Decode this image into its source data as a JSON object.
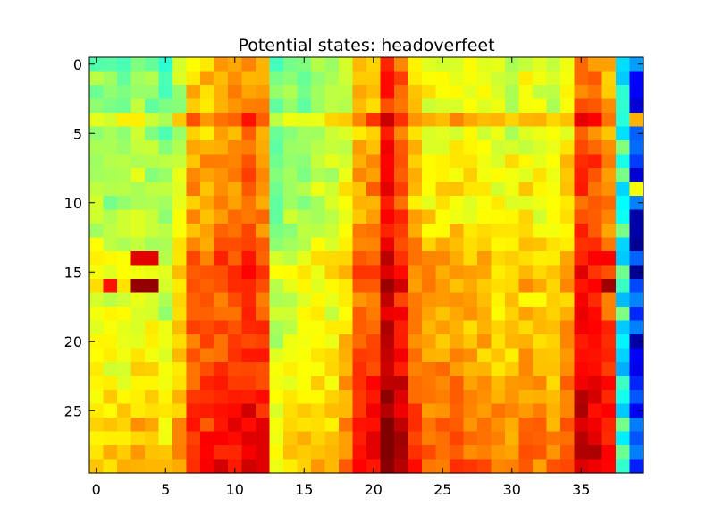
{
  "chart_data": {
    "type": "heatmap",
    "title": "Potential states: headoverfeet",
    "xlabel": "",
    "ylabel": "",
    "n_cols": 40,
    "n_rows": 30,
    "xlim": [
      -0.5,
      39.5
    ],
    "ylim": [
      29.5,
      -0.5
    ],
    "x_ticks": [
      0,
      5,
      10,
      15,
      20,
      25,
      30,
      35
    ],
    "y_ticks": [
      0,
      5,
      10,
      15,
      20,
      25
    ],
    "colormap": "jet",
    "value_range": [
      0,
      1
    ],
    "grid": false,
    "legend": "none",
    "column_profile": [
      0.56,
      0.55,
      0.55,
      0.58,
      0.56,
      0.52,
      0.6,
      0.72,
      0.72,
      0.75,
      0.75,
      0.78,
      0.76,
      0.52,
      0.55,
      0.55,
      0.57,
      0.57,
      0.62,
      0.72,
      0.75,
      0.88,
      0.82,
      0.7,
      0.66,
      0.66,
      0.66,
      0.65,
      0.64,
      0.62,
      0.62,
      0.64,
      0.63,
      0.62,
      0.66,
      0.82,
      0.8,
      0.75,
      0.4,
      0.15
    ],
    "row_profile": [
      -0.06,
      -0.04,
      -0.04,
      -0.05,
      0.05,
      -0.04,
      -0.03,
      0.0,
      -0.01,
      0.0,
      -0.02,
      -0.01,
      0.0,
      0.02,
      0.05,
      0.06,
      0.06,
      0.03,
      0.04,
      0.05,
      0.05,
      0.06,
      0.07,
      0.08,
      0.09,
      0.1,
      0.11,
      0.12,
      0.12,
      0.13
    ],
    "special_cells": [
      {
        "row": 14,
        "col": 3,
        "value": 0.9
      },
      {
        "row": 14,
        "col": 4,
        "value": 0.9
      },
      {
        "row": 16,
        "col": 3,
        "value": 0.98
      },
      {
        "row": 16,
        "col": 4,
        "value": 0.98
      },
      {
        "row": 16,
        "col": 1,
        "value": 0.86
      },
      {
        "row": 14,
        "col": 37,
        "value": 0.88
      },
      {
        "row": 16,
        "col": 37,
        "value": 0.97
      },
      {
        "row": 0,
        "col": 39,
        "value": 0.28
      },
      {
        "row": 1,
        "col": 39,
        "value": 0.12
      },
      {
        "row": 2,
        "col": 39,
        "value": 0.12
      },
      {
        "row": 4,
        "col": 39,
        "value": 0.7
      },
      {
        "row": 8,
        "col": 39,
        "value": 0.08
      },
      {
        "row": 9,
        "col": 39,
        "value": 0.62
      },
      {
        "row": 11,
        "col": 39,
        "value": 0.04
      },
      {
        "row": 12,
        "col": 39,
        "value": 0.04
      },
      {
        "row": 13,
        "col": 39,
        "value": 0.02
      },
      {
        "row": 15,
        "col": 39,
        "value": 0.02
      },
      {
        "row": 28,
        "col": 39,
        "value": 0.25
      }
    ]
  }
}
